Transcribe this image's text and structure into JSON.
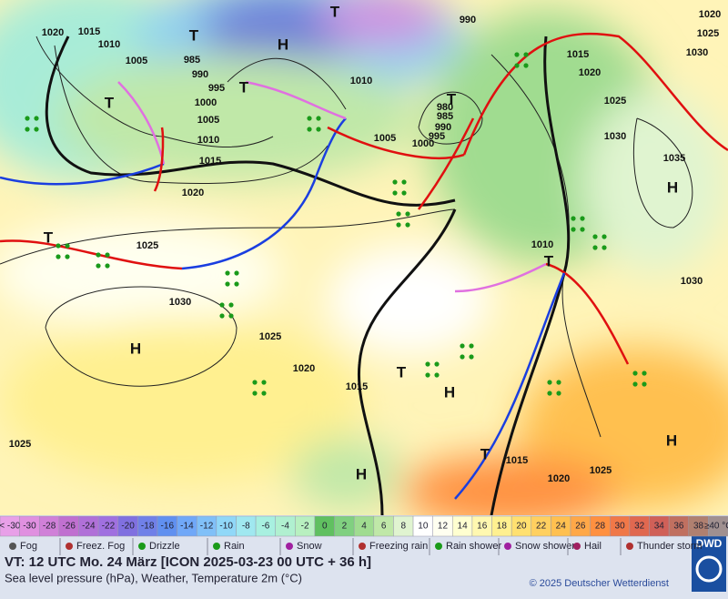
{
  "map": {
    "isobar_labels": [
      "1020",
      "1015",
      "1010",
      "1005",
      "985",
      "990",
      "995",
      "1000",
      "1005",
      "1010",
      "1015",
      "1020",
      "1025",
      "1030",
      "1025",
      "1020",
      "1015",
      "1025",
      "1010",
      "1005",
      "1000",
      "980",
      "985",
      "990",
      "995",
      "990",
      "1015",
      "1020",
      "1025",
      "1030",
      "1035",
      "1030",
      "1010",
      "1015",
      "1020",
      "1025",
      "1020",
      "1025",
      "1030"
    ],
    "pressure_centers": [
      "H",
      "H",
      "H",
      "H",
      "H",
      "H",
      "T",
      "T",
      "T",
      "T",
      "T",
      "T",
      "T",
      "T",
      "T"
    ],
    "color_scale": {
      "labels": [
        "< -30",
        -30,
        -28,
        -26,
        -24,
        -22,
        -20,
        -18,
        -16,
        -14,
        -12,
        -10,
        -8,
        -6,
        -4,
        -2,
        0,
        2,
        4,
        6,
        8,
        10,
        12,
        14,
        16,
        18,
        20,
        22,
        24,
        26,
        28,
        30,
        32,
        34,
        36,
        38,
        "≥40 °C"
      ],
      "colors": [
        "#e8a0e8",
        "#e090e0",
        "#d080d8",
        "#c070d0",
        "#b070d8",
        "#a070e0",
        "#8070e0",
        "#7080e8",
        "#6090f0",
        "#70a8f8",
        "#80c0f8",
        "#90d8f8",
        "#a0e8f0",
        "#a8f0e0",
        "#b0f0d0",
        "#b8f0c0",
        "#60c060",
        "#80d080",
        "#a0dc90",
        "#c0e8a8",
        "#e0f4d0",
        "#ffffff",
        "#fffff0",
        "#ffffd0",
        "#fff8b0",
        "#fff090",
        "#ffe070",
        "#ffd060",
        "#ffc050",
        "#ffa848",
        "#ff9040",
        "#f07848",
        "#e06850",
        "#d06058",
        "#c07060",
        "#b08070",
        "#a09090"
      ]
    }
  },
  "legend": {
    "items": [
      "Fog",
      "Freez. Fog",
      "Drizzle",
      "Rain",
      "Snow",
      "Freezing rain",
      "Rain shower",
      "Snow shower",
      "Hail",
      "Thunder storm"
    ]
  },
  "footer": {
    "valid_time": "VT: 12 UTC Mo.  24 März [ICON 2025-03-23  00 UTC + 36 h]",
    "description": "Sea level pressure (hPa), Weather, Temperature 2m (°C)",
    "copyright": "© 2025 Deutscher Wetterdienst",
    "logo": "DWD"
  }
}
